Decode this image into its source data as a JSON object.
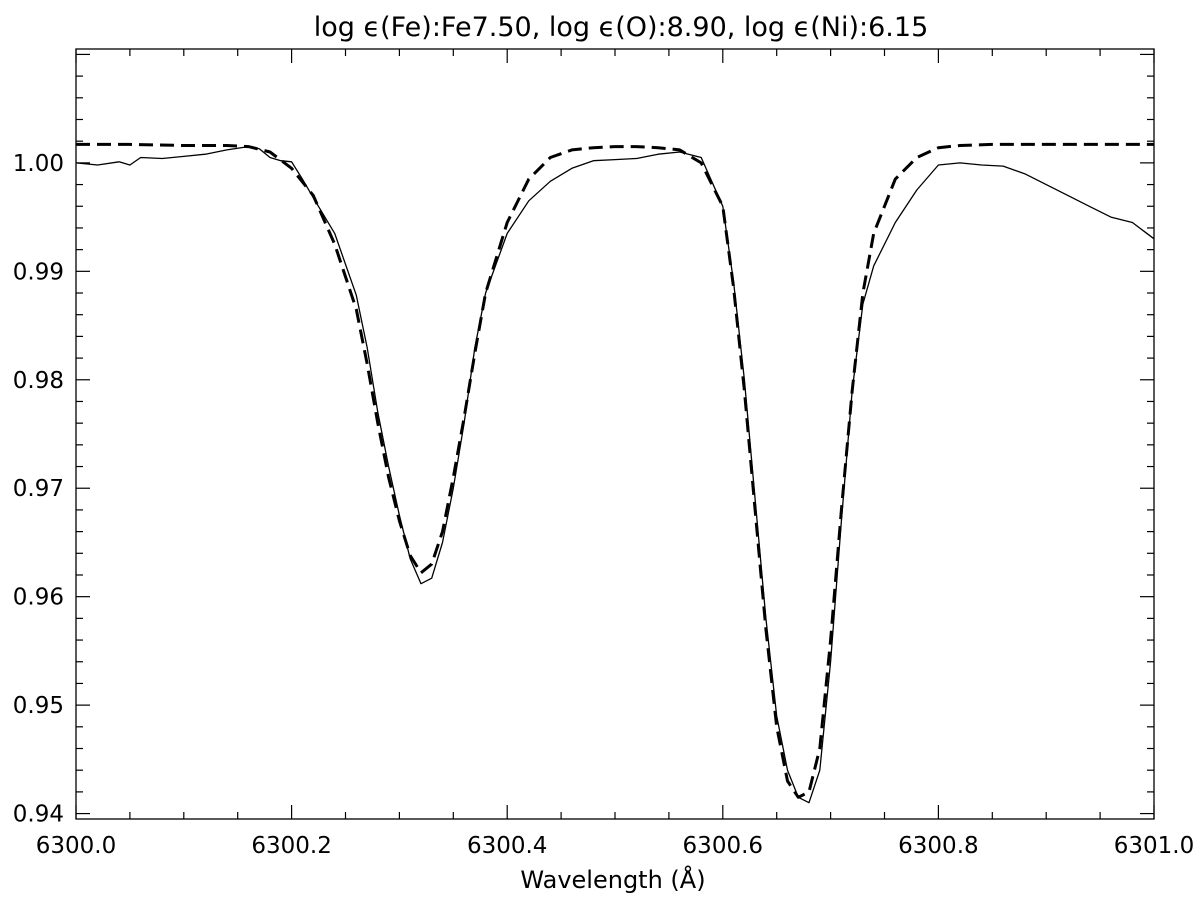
{
  "chart_data": {
    "type": "line",
    "title": "log ϵ(Fe):Fe7.50, log ϵ(O):8.90, log ϵ(Ni):6.15",
    "xlabel": "Wavelength (Å)",
    "ylabel": "",
    "xlim": [
      6300.0,
      6301.0
    ],
    "ylim": [
      0.9395,
      1.0105
    ],
    "x_ticks": [
      6300.0,
      6300.2,
      6300.4,
      6300.6,
      6300.8,
      6301.0
    ],
    "x_tick_labels": [
      "6300.0",
      "6300.2",
      "6300.4",
      "6300.6",
      "6300.8",
      "6301.0"
    ],
    "y_ticks": [
      0.94,
      0.95,
      0.96,
      0.97,
      0.98,
      0.99,
      1.0
    ],
    "y_tick_labels": [
      "0.94",
      "0.95",
      "0.96",
      "0.97",
      "0.98",
      "0.99",
      "1.00"
    ],
    "grid": false,
    "series": [
      {
        "style": "solid",
        "color": "#000000",
        "x": [
          6300.0,
          6300.02,
          6300.04,
          6300.05,
          6300.06,
          6300.08,
          6300.1,
          6300.12,
          6300.14,
          6300.16,
          6300.17,
          6300.18,
          6300.19,
          6300.2,
          6300.21,
          6300.22,
          6300.24,
          6300.26,
          6300.27,
          6300.28,
          6300.29,
          6300.3,
          6300.31,
          6300.32,
          6300.33,
          6300.34,
          6300.35,
          6300.36,
          6300.37,
          6300.38,
          6300.4,
          6300.42,
          6300.44,
          6300.46,
          6300.48,
          6300.5,
          6300.52,
          6300.54,
          6300.56,
          6300.58,
          6300.6,
          6300.61,
          6300.62,
          6300.63,
          6300.64,
          6300.65,
          6300.66,
          6300.67,
          6300.68,
          6300.69,
          6300.7,
          6300.71,
          6300.72,
          6300.73,
          6300.74,
          6300.76,
          6300.78,
          6300.8,
          6300.82,
          6300.84,
          6300.86,
          6300.88,
          6300.9,
          6300.92,
          6300.94,
          6300.96,
          6300.98,
          6301.0
        ],
        "y": [
          1.0,
          0.9998,
          1.0001,
          0.9998,
          1.0005,
          1.0004,
          1.0006,
          1.0008,
          1.0012,
          1.0015,
          1.0013,
          1.0005,
          1.0002,
          1.0001,
          0.9985,
          0.9968,
          0.9935,
          0.9878,
          0.983,
          0.977,
          0.972,
          0.9675,
          0.9635,
          0.9612,
          0.9617,
          0.965,
          0.97,
          0.976,
          0.983,
          0.988,
          0.9935,
          0.9965,
          0.9983,
          0.9995,
          1.0002,
          1.0003,
          1.0004,
          1.0008,
          1.001,
          1.0005,
          0.996,
          0.989,
          0.98,
          0.969,
          0.958,
          0.949,
          0.944,
          0.9415,
          0.941,
          0.944,
          0.954,
          0.967,
          0.979,
          0.987,
          0.9905,
          0.9945,
          0.9975,
          0.9998,
          1.0,
          0.9998,
          0.9997,
          0.999,
          0.998,
          0.997,
          0.996,
          0.995,
          0.9945,
          0.993
        ]
      },
      {
        "style": "dashed",
        "color": "#000000",
        "x": [
          6300.0,
          6300.05,
          6300.1,
          6300.14,
          6300.16,
          6300.18,
          6300.2,
          6300.22,
          6300.24,
          6300.26,
          6300.27,
          6300.28,
          6300.29,
          6300.3,
          6300.31,
          6300.32,
          6300.33,
          6300.34,
          6300.35,
          6300.36,
          6300.37,
          6300.38,
          6300.4,
          6300.42,
          6300.44,
          6300.46,
          6300.48,
          6300.5,
          6300.52,
          6300.54,
          6300.56,
          6300.58,
          6300.6,
          6300.61,
          6300.62,
          6300.63,
          6300.64,
          6300.65,
          6300.66,
          6300.67,
          6300.68,
          6300.69,
          6300.7,
          6300.71,
          6300.72,
          6300.73,
          6300.74,
          6300.76,
          6300.78,
          6300.8,
          6300.82,
          6300.85,
          6300.9,
          6300.95,
          6301.0
        ],
        "y": [
          1.0017,
          1.0017,
          1.0016,
          1.0016,
          1.0015,
          1.001,
          0.9995,
          0.997,
          0.9925,
          0.9865,
          0.9815,
          0.976,
          0.971,
          0.967,
          0.9638,
          0.9622,
          0.963,
          0.966,
          0.971,
          0.9765,
          0.9825,
          0.988,
          0.9945,
          0.9985,
          1.0005,
          1.0012,
          1.0014,
          1.0015,
          1.0015,
          1.0014,
          1.0012,
          1.0,
          0.996,
          0.9885,
          0.979,
          0.968,
          0.957,
          0.948,
          0.943,
          0.9415,
          0.942,
          0.946,
          0.956,
          0.968,
          0.979,
          0.988,
          0.9935,
          0.9985,
          1.0005,
          1.0014,
          1.0016,
          1.0017,
          1.0017,
          1.0017,
          1.0017
        ]
      }
    ]
  }
}
